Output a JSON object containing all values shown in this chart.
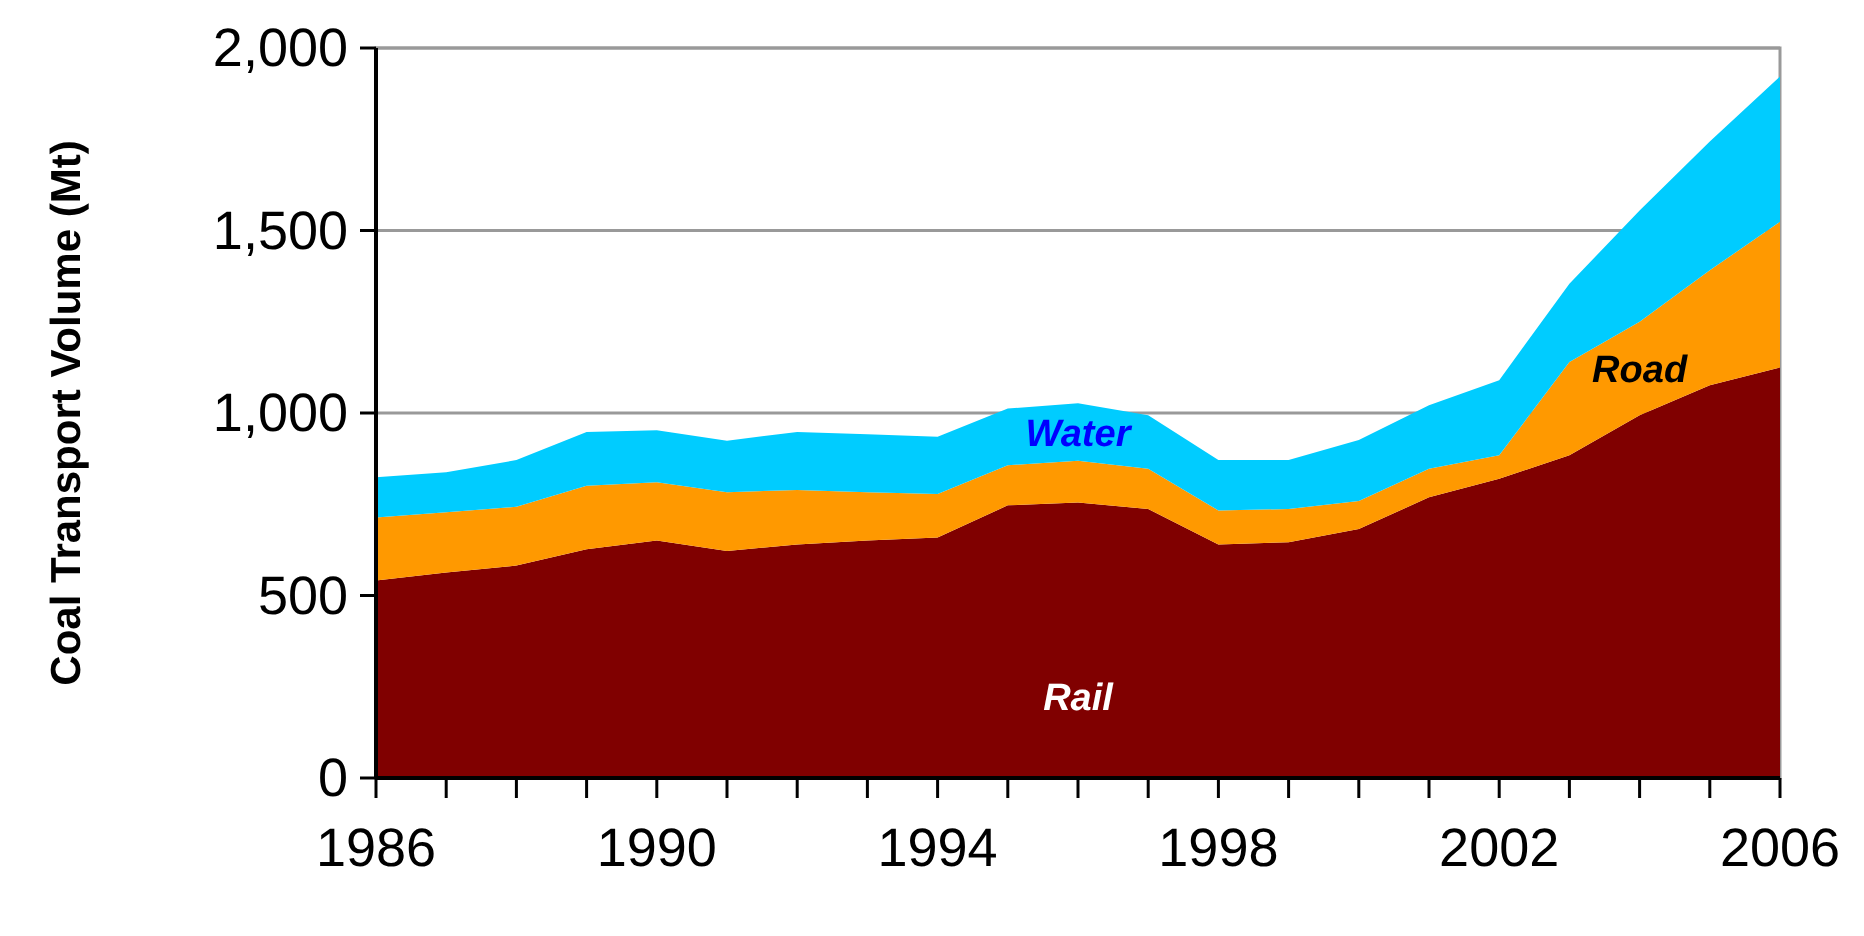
{
  "chart_data": {
    "type": "area",
    "stacked": true,
    "ylabel": "Coal Transport Volume (Mt)",
    "x": [
      1986,
      1987,
      1988,
      1989,
      1990,
      1991,
      1992,
      1993,
      1994,
      1995,
      1996,
      1997,
      1998,
      1999,
      2000,
      2001,
      2002,
      2003,
      2004,
      2005,
      2006
    ],
    "series": [
      {
        "name": "Rail",
        "color": "#800000",
        "values": [
          541,
          563,
          582,
          627,
          651,
          622,
          640,
          651,
          659,
          747,
          755,
          737,
          640,
          646,
          682,
          769,
          820,
          884,
          994,
          1076,
          1125
        ]
      },
      {
        "name": "Road",
        "color": "#ff9900",
        "values": [
          173,
          165,
          161,
          174,
          159,
          161,
          149,
          132,
          119,
          110,
          114,
          110,
          93,
          91,
          77,
          78,
          64,
          256,
          256,
          315,
          399
        ]
      },
      {
        "name": "Water",
        "color": "#00ccff",
        "values": [
          110,
          110,
          128,
          147,
          143,
          141,
          159,
          159,
          157,
          155,
          158,
          147,
          138,
          134,
          167,
          174,
          206,
          214,
          305,
          353,
          398
        ]
      }
    ],
    "xlim": [
      1986,
      2006
    ],
    "xticks": [
      1986,
      {
        "value": 1987,
        "label": null
      },
      {
        "value": 1988,
        "label": null
      },
      {
        "value": 1989,
        "label": null
      },
      1990,
      {
        "value": 1991,
        "label": null
      },
      {
        "value": 1992,
        "label": null
      },
      {
        "value": 1993,
        "label": null
      },
      1994,
      {
        "value": 1995,
        "label": null
      },
      {
        "value": 1996,
        "label": null
      },
      {
        "value": 1997,
        "label": null
      },
      1998,
      {
        "value": 1999,
        "label": null
      },
      {
        "value": 2000,
        "label": null
      },
      {
        "value": 2001,
        "label": null
      },
      2002,
      {
        "value": 2003,
        "label": null
      },
      {
        "value": 2004,
        "label": null
      },
      {
        "value": 2005,
        "label": null
      },
      2006
    ],
    "ylim": [
      0,
      2000
    ],
    "yticks": [
      0,
      500,
      {
        "value": 1000,
        "label": "1,000"
      },
      {
        "value": 1500,
        "label": "1,500"
      },
      {
        "value": 2000,
        "label": "2,000"
      }
    ],
    "grid": "y"
  }
}
